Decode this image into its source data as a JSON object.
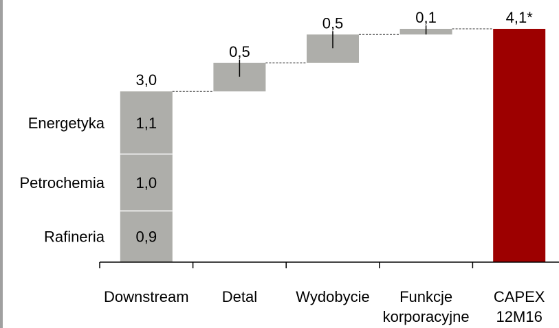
{
  "chart_data": {
    "type": "bar",
    "subtype": "waterfall",
    "categories": [
      [
        "Downstream"
      ],
      [
        "Detal"
      ],
      [
        "Wydobycie"
      ],
      [
        "Funkcje",
        "korporacyjne"
      ],
      [
        "CAPEX",
        "12M16"
      ]
    ],
    "total_labels": [
      "3,0",
      "0,5",
      "0,5",
      "0,1",
      "4,1*"
    ],
    "values": [
      3.0,
      0.5,
      0.5,
      0.1,
      4.1
    ],
    "is_total": [
      false,
      false,
      false,
      false,
      true
    ],
    "segments": [
      {
        "name": "Rafineria",
        "value_label": "0,9",
        "value": 0.9
      },
      {
        "name": "Petrochemia",
        "value_label": "1,0",
        "value": 1.0
      },
      {
        "name": "Energetyka",
        "value_label": "1,1",
        "value": 1.1
      }
    ],
    "title": "",
    "xlabel": "",
    "ylabel": "",
    "ylim": [
      0,
      4.1
    ],
    "grid": false,
    "legend": "left-inline",
    "colors": {
      "bar": "#aeaeaa",
      "total": "#9d0000",
      "connector": "#333333",
      "axis": "#000000",
      "left_border": "#a0a0a0"
    }
  }
}
